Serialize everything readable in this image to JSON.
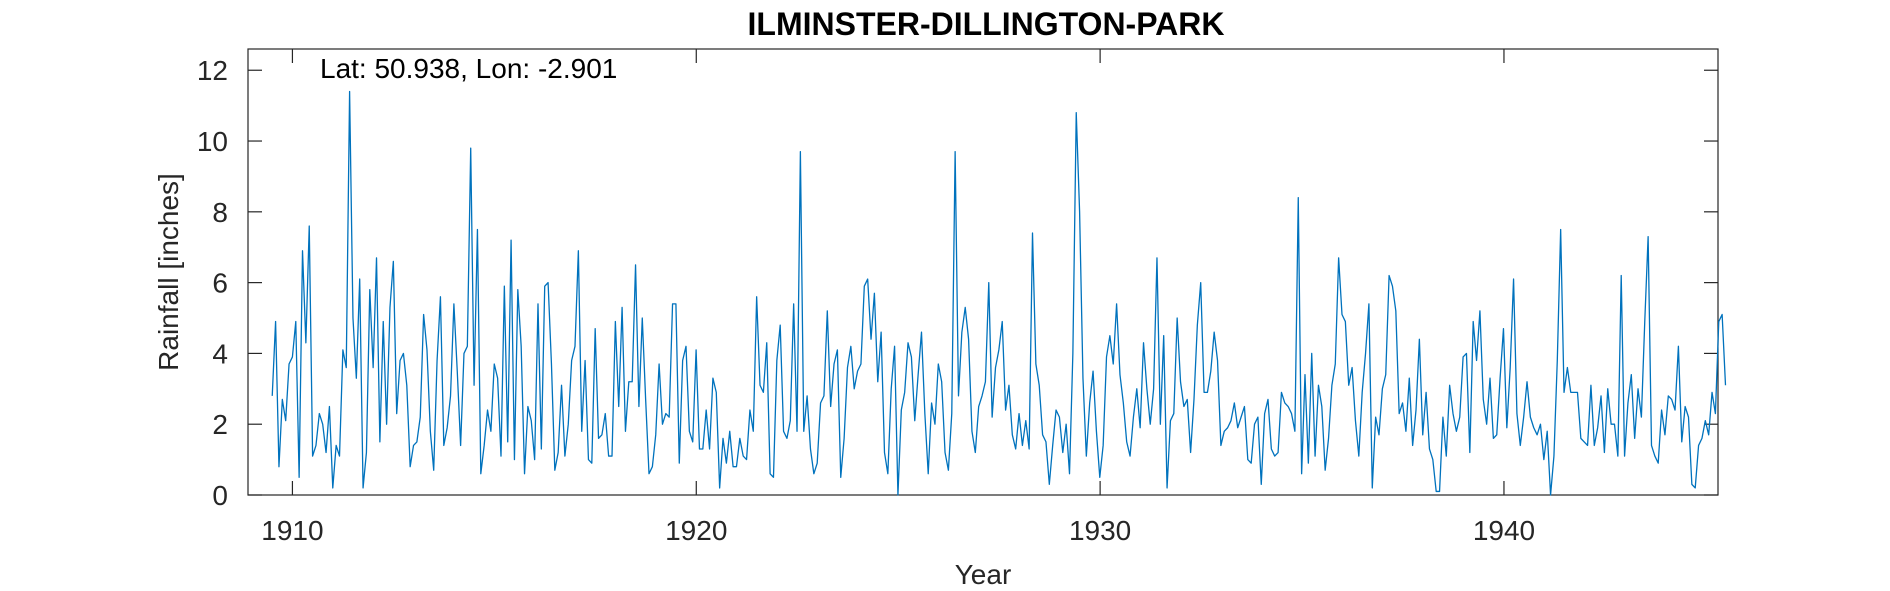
{
  "chart_data": {
    "type": "line",
    "title": "ILMINSTER-DILLINGTON-PARK",
    "annotation": "Lat: 50.938, Lon: -2.901",
    "xlabel": "Year",
    "ylabel": "Rainfall [inches]",
    "xlim": [
      1908.9,
      1945.3
    ],
    "ylim": [
      0,
      12.6
    ],
    "xticks": [
      1910,
      1920,
      1930,
      1940
    ],
    "yticks": [
      0,
      2,
      4,
      6,
      8,
      10,
      12
    ],
    "color": "#0072BD",
    "series": [
      {
        "start_year": 1909.5,
        "step": 0.0833,
        "values": [
          2.8,
          4.9,
          0.8,
          2.7,
          2.1,
          3.7,
          3.9,
          4.9,
          0.5,
          6.9,
          4.3,
          7.6,
          1.1,
          1.4,
          2.3,
          2.0,
          1.2,
          2.5,
          0.2,
          1.4,
          1.1,
          4.1,
          3.6,
          11.4,
          5.0,
          3.3,
          6.1,
          0.2,
          1.2,
          5.8,
          3.6,
          6.7,
          1.5,
          4.9,
          2.0,
          5.3,
          6.6,
          2.3,
          3.8,
          4.0,
          3.1,
          0.8,
          1.4,
          1.5,
          2.2,
          5.1,
          4.1,
          1.8,
          0.7,
          3.8,
          5.6,
          1.4,
          1.9,
          2.8,
          5.4,
          3.5,
          1.4,
          4.0,
          4.2,
          9.8,
          3.1,
          7.5,
          0.6,
          1.4,
          2.4,
          1.8,
          3.7,
          3.3,
          1.1,
          5.9,
          1.5,
          7.2,
          1.0,
          5.8,
          4.2,
          0.6,
          2.5,
          2.1,
          1.0,
          5.4,
          1.3,
          5.9,
          6.0,
          3.7,
          0.7,
          1.2,
          3.1,
          1.1,
          2.0,
          3.8,
          4.2,
          6.9,
          1.8,
          3.8,
          1.0,
          0.9,
          4.7,
          1.6,
          1.7,
          2.3,
          1.1,
          1.1,
          4.9,
          2.5,
          5.3,
          1.8,
          3.2,
          3.2,
          6.5,
          2.5,
          5.0,
          2.7,
          0.6,
          0.8,
          1.7,
          3.7,
          2.0,
          2.3,
          2.2,
          5.4,
          5.4,
          0.9,
          3.8,
          4.2,
          1.8,
          1.5,
          4.1,
          1.3,
          1.3,
          2.4,
          1.3,
          3.3,
          2.9,
          0.2,
          1.6,
          0.9,
          1.8,
          0.8,
          0.8,
          1.6,
          1.1,
          1.0,
          2.4,
          1.8,
          5.6,
          3.1,
          2.9,
          4.3,
          0.6,
          0.5,
          3.8,
          4.8,
          1.8,
          1.6,
          2.1,
          5.4,
          1.8,
          9.7,
          1.8,
          2.8,
          1.3,
          0.6,
          0.9,
          2.6,
          2.8,
          5.2,
          2.5,
          3.7,
          4.1,
          0.5,
          1.6,
          3.6,
          4.2,
          3.0,
          3.5,
          3.7,
          5.9,
          6.1,
          4.4,
          5.7,
          3.2,
          4.6,
          1.2,
          0.6,
          3.0,
          4.2,
          0.0,
          2.4,
          2.9,
          4.3,
          3.9,
          2.1,
          3.4,
          4.6,
          2.3,
          0.6,
          2.6,
          2.0,
          3.7,
          3.2,
          1.2,
          0.7,
          2.3,
          9.7,
          2.8,
          4.6,
          5.3,
          4.4,
          1.8,
          1.2,
          2.5,
          2.8,
          3.2,
          6.0,
          2.2,
          3.6,
          4.1,
          4.9,
          2.4,
          3.1,
          1.7,
          1.3,
          2.3,
          1.4,
          2.1,
          1.3,
          7.4,
          3.7,
          3.1,
          1.7,
          1.5,
          0.3,
          1.4,
          2.4,
          2.2,
          1.2,
          2.0,
          0.6,
          4.0,
          10.8,
          8.0,
          3.3,
          1.1,
          2.6,
          3.5,
          1.8,
          0.5,
          1.4,
          3.9,
          4.5,
          3.7,
          5.4,
          3.4,
          2.6,
          1.5,
          1.1,
          2.2,
          3.0,
          1.9,
          4.3,
          3.0,
          2.0,
          3.0,
          6.7,
          2.0,
          4.5,
          0.2,
          2.1,
          2.3,
          5.0,
          3.2,
          2.5,
          2.7,
          1.2,
          2.7,
          4.8,
          6.0,
          2.9,
          2.9,
          3.5,
          4.6,
          3.8,
          1.4,
          1.8,
          1.9,
          2.1,
          2.6,
          1.9,
          2.2,
          2.5,
          1.0,
          0.9,
          2.0,
          2.2,
          0.3,
          2.3,
          2.7,
          1.3,
          1.1,
          1.2,
          2.9,
          2.6,
          2.5,
          2.3,
          1.8,
          8.4,
          0.6,
          3.4,
          0.9,
          4.0,
          1.1,
          3.1,
          2.5,
          0.7,
          1.6,
          3.1,
          3.7,
          6.7,
          5.1,
          4.9,
          3.1,
          3.6,
          2.1,
          1.1,
          2.9,
          4.0,
          5.4,
          0.2,
          2.2,
          1.7,
          3.0,
          3.4,
          6.2,
          5.9,
          5.2,
          2.3,
          2.6,
          1.8,
          3.3,
          1.4,
          2.4,
          4.4,
          1.7,
          2.9,
          1.3,
          1.0,
          0.1,
          0.1,
          2.2,
          1.1,
          3.1,
          2.3,
          1.8,
          2.2,
          3.9,
          4.0,
          1.2,
          4.9,
          3.8,
          5.2,
          2.7,
          2.0,
          3.3,
          1.6,
          1.7,
          3.3,
          4.7,
          1.9,
          3.6,
          6.1,
          2.3,
          1.4,
          2.2,
          3.2,
          2.2,
          1.9,
          1.7,
          2.0,
          1.0,
          1.8,
          0.0,
          1.1,
          3.8,
          7.5,
          2.9,
          3.6,
          2.9,
          2.9,
          2.9,
          1.6,
          1.5,
          1.4,
          3.1,
          1.4,
          1.9,
          2.8,
          1.2,
          3.0,
          2.0,
          2.0,
          1.1,
          6.2,
          1.1,
          2.6,
          3.4,
          1.6,
          3.0,
          2.2,
          4.9,
          7.3,
          1.4,
          1.1,
          0.9,
          2.4,
          1.7,
          2.8,
          2.7,
          2.4,
          4.2,
          1.5,
          2.5,
          2.2,
          0.3,
          0.2,
          1.4,
          1.6,
          2.1,
          1.7,
          2.9,
          2.3,
          4.9,
          5.1,
          3.1
        ]
      }
    ]
  }
}
